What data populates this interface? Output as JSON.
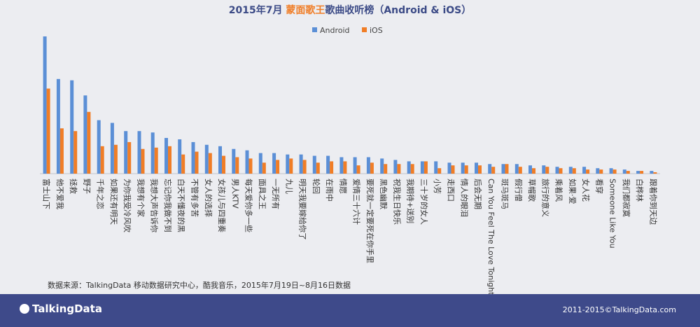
{
  "title": {
    "prefix": "2015年7月 ",
    "highlight": "蒙面歌王",
    "suffix": "歌曲收听榜（Android & iOS）"
  },
  "legend": {
    "android": "Android",
    "ios": "iOS"
  },
  "colors": {
    "android": "#5b8fd6",
    "ios": "#f07d26",
    "footer": "#3e4a8a"
  },
  "chart_data": {
    "type": "bar",
    "title": "2015年7月 蒙面歌王歌曲收听榜（Android & iOS）",
    "categories": [
      "富士山下",
      "他不爱我",
      "拯救",
      "野子",
      "千年之恋",
      "如果还有明天",
      "为你我受冷风吹",
      "我想有个家",
      "我想大声告诉你",
      "忘记你我做不到",
      "白天不懂夜的黑",
      "不管有多苦",
      "女人的选择",
      "女孩儿与四重奏",
      "男人KTV",
      "每天爱你多一些",
      "面具之王",
      "一无所有",
      "九儿",
      "明天我要嫁给你了",
      "轮回",
      "在雨中",
      "情愿",
      "爱情三十六计",
      "要死就一定要死在你手里",
      "黑色幽默",
      "祝我生日快乐",
      "我期待+送别",
      "三十岁的女人",
      "小芳",
      "走西口",
      "情人的眼泪",
      "后会无期",
      "Can You Feel The Love Tonight",
      "斑马斑马",
      "假行僧",
      "草帽歌",
      "旅行的意义",
      "乘着风",
      "如果·爱",
      "女人花",
      "看穿",
      "Someone Like You",
      "我们都寂寞",
      "白桦林",
      "跟着你到天边"
    ],
    "series": [
      {
        "name": "Android",
        "values": [
          100,
          69,
          68,
          57,
          39,
          37,
          31,
          31,
          30,
          26,
          25,
          23,
          21,
          20,
          18,
          17,
          15,
          15,
          14,
          14,
          13,
          13,
          12,
          12,
          12,
          11,
          10,
          9,
          9,
          9,
          8,
          8,
          8,
          7,
          7,
          7,
          6,
          6,
          5,
          5,
          5,
          4,
          4,
          3,
          2,
          2
        ]
      },
      {
        "name": "iOS",
        "values": [
          62,
          33,
          31,
          45,
          20,
          21,
          23,
          18,
          19,
          20,
          14,
          16,
          15,
          13,
          12,
          11,
          8,
          10,
          11,
          10,
          8,
          9,
          9,
          6,
          8,
          7,
          7,
          7,
          9,
          4,
          6,
          6,
          6,
          5,
          7,
          5,
          4,
          5,
          4,
          4,
          3,
          3,
          3,
          2,
          2,
          1
        ]
      }
    ],
    "ylim": [
      0,
      100
    ],
    "legend": "top-center",
    "grid": false
  },
  "source": "数据来源：TalkingData 移动数据研究中心，酷我音乐，2015年7月19日~8月16日数据",
  "footer": {
    "logo": "TalkingData",
    "copyright": "2011-2015©TalkingData.com"
  }
}
